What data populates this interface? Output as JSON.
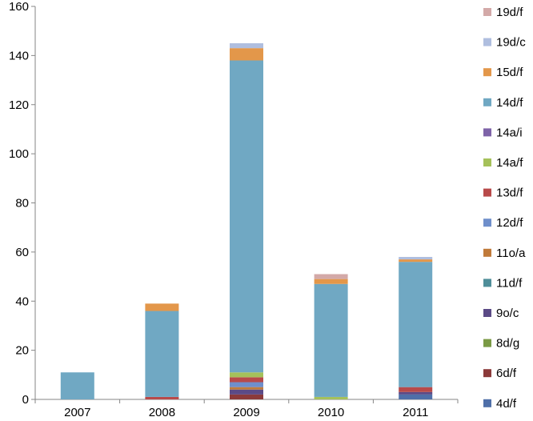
{
  "chart_data": {
    "type": "bar",
    "stacked": true,
    "categories": [
      "2007",
      "2008",
      "2009",
      "2010",
      "2011"
    ],
    "ylim": [
      0,
      160
    ],
    "yticks": [
      0,
      20,
      40,
      60,
      80,
      100,
      120,
      140,
      160
    ],
    "grid": false,
    "legend_position": "right",
    "series": [
      {
        "name": "4d/f",
        "color": "#4F6FA8",
        "values": [
          0,
          0,
          0,
          0,
          2
        ]
      },
      {
        "name": "6d/f",
        "color": "#8B3A3A",
        "values": [
          0,
          0,
          2,
          0,
          0
        ]
      },
      {
        "name": "8d/g",
        "color": "#7A9A45",
        "values": [
          0,
          0,
          0,
          0,
          0
        ]
      },
      {
        "name": "9o/c",
        "color": "#5B4A86",
        "values": [
          0,
          0,
          2,
          0,
          1
        ]
      },
      {
        "name": "11d/f",
        "color": "#4F8E99",
        "values": [
          0,
          0,
          0,
          0,
          0
        ]
      },
      {
        "name": "11o/a",
        "color": "#C07A3A",
        "values": [
          0,
          0,
          1,
          0,
          0
        ]
      },
      {
        "name": "12d/f",
        "color": "#6F8FCB",
        "values": [
          0,
          0,
          2,
          0,
          0
        ]
      },
      {
        "name": "13d/f",
        "color": "#B84A4A",
        "values": [
          0,
          1,
          2,
          0,
          2
        ]
      },
      {
        "name": "14a/f",
        "color": "#A5C15A",
        "values": [
          0,
          0,
          2,
          1,
          0
        ]
      },
      {
        "name": "14a/i",
        "color": "#7E63A8",
        "values": [
          0,
          0,
          0,
          0,
          0
        ]
      },
      {
        "name": "14d/f",
        "color": "#70A8C3",
        "values": [
          11,
          35,
          127,
          46,
          51
        ]
      },
      {
        "name": "15d/f",
        "color": "#E3974A",
        "values": [
          0,
          3,
          5,
          2,
          1
        ]
      },
      {
        "name": "19d/c",
        "color": "#AFBEDF",
        "values": [
          0,
          0,
          2,
          0,
          1
        ]
      },
      {
        "name": "19d/f",
        "color": "#D3A9A8",
        "values": [
          0,
          0,
          0,
          2,
          0
        ]
      }
    ]
  }
}
